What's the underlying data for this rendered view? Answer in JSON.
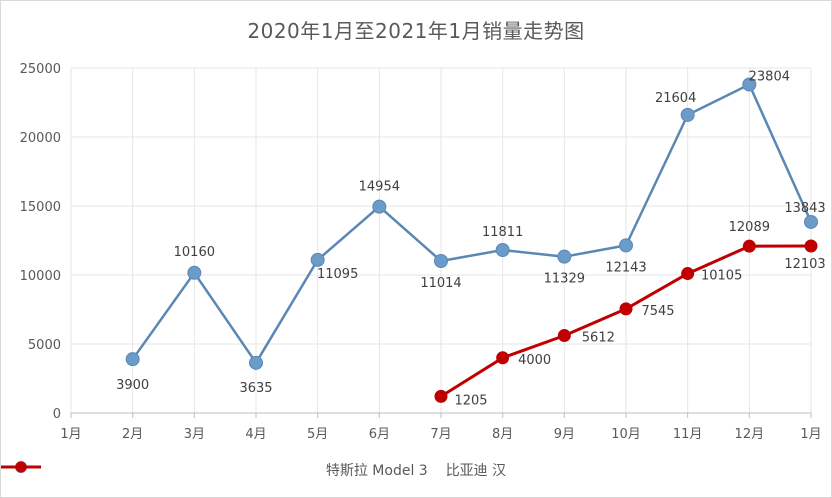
{
  "chart_data": {
    "type": "line",
    "title": "2020年1月至2021年1月销量走势图",
    "categories": [
      "1月",
      "2月",
      "3月",
      "4月",
      "5月",
      "6月",
      "7月",
      "8月",
      "9月",
      "10月",
      "11月",
      "12月",
      "1月"
    ],
    "ylim": [
      0,
      25000
    ],
    "yticks": [
      "0",
      "5000",
      "10000",
      "15000",
      "20000",
      "25000"
    ],
    "grid": true,
    "legend_position": "bottom",
    "series": [
      {
        "name": "特斯拉 Model 3",
        "color": "#6b9bc9",
        "line_color": "#5b87b5",
        "values": [
          null,
          3900,
          10160,
          3635,
          11095,
          14954,
          11014,
          11811,
          11329,
          12143,
          21604,
          23804,
          13843
        ],
        "labels": [
          "",
          "3900",
          "10160",
          "3635",
          "11095",
          "14954",
          "11014",
          "11811",
          "11329",
          "12143",
          "21604",
          "23804",
          "13843"
        ]
      },
      {
        "name": "比亚迪 汉",
        "color": "#c00000",
        "line_color": "#c00000",
        "values": [
          null,
          null,
          null,
          null,
          null,
          null,
          1205,
          4000,
          5612,
          7545,
          10105,
          12089,
          12103
        ],
        "labels": [
          "",
          "",
          "",
          "",
          "",
          "",
          "1205",
          "4000",
          "5612",
          "7545",
          "10105",
          "12089",
          "12103"
        ]
      }
    ]
  }
}
